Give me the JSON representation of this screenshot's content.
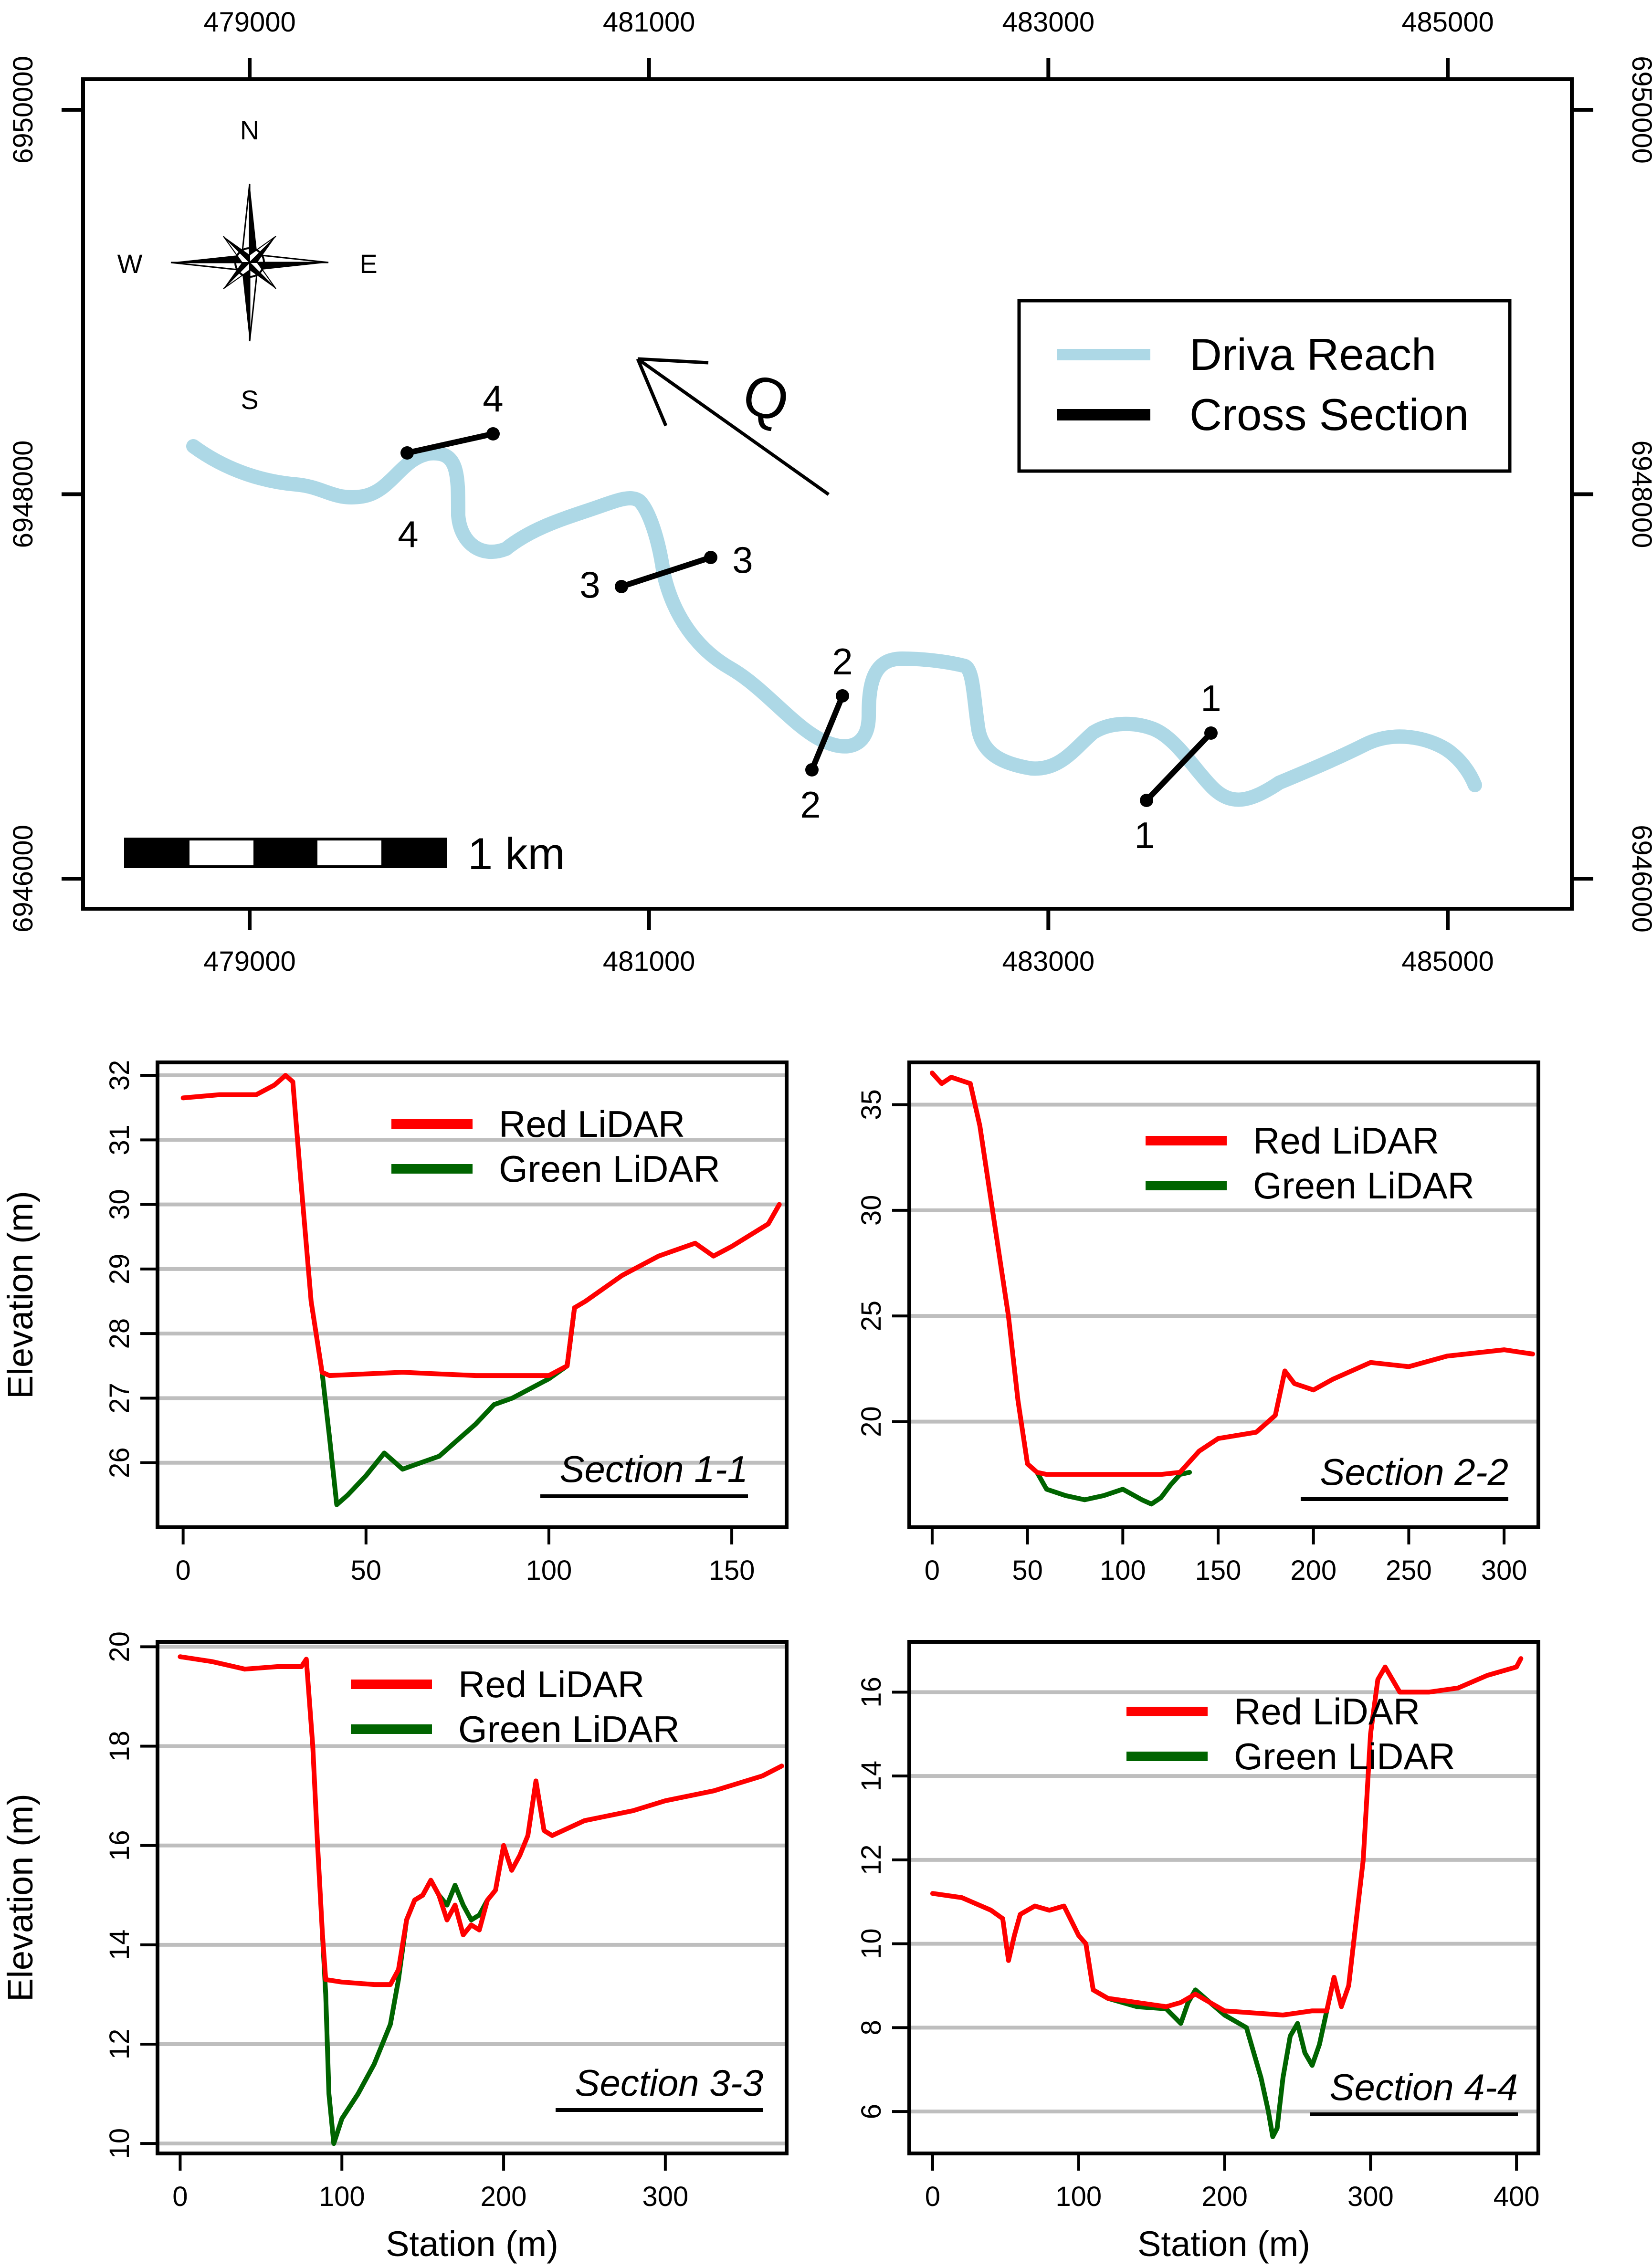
{
  "map": {
    "x_ticks": [
      "479000",
      "481000",
      "483000",
      "485000"
    ],
    "x_tick_values": [
      479000,
      481000,
      483000,
      485000
    ],
    "y_ticks": [
      "6946000",
      "6948000",
      "6950000"
    ],
    "y_tick_values": [
      6946000,
      6948000,
      6950000
    ],
    "compass": {
      "n": "N",
      "s": "S",
      "e": "E",
      "w": "W"
    },
    "flow_label": "Q",
    "legend": [
      {
        "label": "Driva Reach",
        "color": "#add8e6"
      },
      {
        "label": "Cross Section",
        "color": "#000000"
      }
    ],
    "scale_bar_label": "1 km",
    "cross_sections": [
      {
        "id": "1",
        "start_label": "1",
        "end_label": "1"
      },
      {
        "id": "2",
        "start_label": "2",
        "end_label": "2"
      },
      {
        "id": "3",
        "start_label": "3",
        "end_label": "3"
      },
      {
        "id": "4",
        "start_label": "4",
        "end_label": "4"
      }
    ]
  },
  "panels": {
    "ylabel": "Elevation (m)",
    "xlabel": "Station (m)",
    "legend_red": "Red LiDAR",
    "legend_green": "Green LiDAR",
    "red_color": "#ff0000",
    "green_color": "#006400",
    "grid_color": "#bebebe"
  },
  "chart_data": [
    {
      "type": "line",
      "title": "Section 1-1",
      "xlabel": "",
      "ylabel": "Elevation (m)",
      "xlim": [
        -7,
        165
      ],
      "ylim": [
        25.0,
        32.2
      ],
      "x_ticks": [
        0,
        50,
        100,
        150
      ],
      "y_ticks": [
        26,
        27,
        28,
        29,
        30,
        31,
        32
      ],
      "series": [
        {
          "name": "Red LiDAR",
          "x": [
            0,
            10,
            20,
            25,
            28,
            30,
            32,
            35,
            38,
            40,
            60,
            80,
            100,
            105,
            107,
            110,
            120,
            130,
            140,
            145,
            150,
            160,
            163
          ],
          "y": [
            31.65,
            31.7,
            31.7,
            31.85,
            32.0,
            31.9,
            30.5,
            28.5,
            27.4,
            27.35,
            27.4,
            27.35,
            27.35,
            27.5,
            28.4,
            28.5,
            28.9,
            29.2,
            29.4,
            29.2,
            29.35,
            29.7,
            30.0
          ]
        },
        {
          "name": "Green LiDAR",
          "x": [
            38,
            40,
            42,
            45,
            50,
            55,
            60,
            65,
            70,
            80,
            85,
            90,
            100,
            105,
            107
          ],
          "y": [
            27.4,
            26.4,
            25.35,
            25.5,
            25.8,
            26.15,
            25.9,
            26.0,
            26.1,
            26.6,
            26.9,
            27.0,
            27.3,
            27.5,
            28.4
          ]
        }
      ]
    },
    {
      "type": "line",
      "title": "Section 2-2",
      "xlabel": "",
      "ylabel": "",
      "xlim": [
        -12,
        318
      ],
      "ylim": [
        15.0,
        37.0
      ],
      "x_ticks": [
        0,
        50,
        100,
        150,
        200,
        250,
        300
      ],
      "y_ticks": [
        20,
        25,
        30,
        35
      ],
      "series": [
        {
          "name": "Red LiDAR",
          "x": [
            0,
            5,
            10,
            20,
            25,
            30,
            40,
            45,
            50,
            55,
            60,
            80,
            100,
            120,
            130,
            140,
            150,
            170,
            180,
            185,
            190,
            200,
            210,
            230,
            250,
            270,
            300,
            315
          ],
          "y": [
            36.5,
            36.0,
            36.3,
            36.0,
            34.0,
            31.0,
            25.0,
            21.0,
            18.0,
            17.6,
            17.5,
            17.5,
            17.5,
            17.5,
            17.6,
            18.6,
            19.2,
            19.5,
            20.3,
            22.4,
            21.8,
            21.5,
            22.0,
            22.8,
            22.6,
            23.1,
            23.4,
            23.2
          ]
        },
        {
          "name": "Green LiDAR",
          "x": [
            55,
            60,
            70,
            80,
            90,
            100,
            110,
            115,
            120,
            125,
            130,
            135
          ],
          "y": [
            17.6,
            16.8,
            16.5,
            16.3,
            16.5,
            16.8,
            16.3,
            16.1,
            16.4,
            17.0,
            17.5,
            17.6
          ]
        }
      ]
    },
    {
      "type": "line",
      "title": "Section 3-3",
      "xlabel": "Station (m)",
      "ylabel": "Elevation (m)",
      "xlim": [
        -14,
        375
      ],
      "ylim": [
        9.8,
        20.1
      ],
      "x_ticks": [
        0,
        100,
        200,
        300
      ],
      "y_ticks": [
        10,
        12,
        14,
        16,
        18,
        20
      ],
      "series": [
        {
          "name": "Red LiDAR",
          "x": [
            0,
            20,
            40,
            60,
            75,
            78,
            82,
            85,
            88,
            90,
            100,
            120,
            130,
            135,
            140,
            145,
            150,
            155,
            160,
            165,
            170,
            175,
            180,
            185,
            190,
            195,
            200,
            205,
            210,
            215,
            220,
            225,
            230,
            250,
            280,
            300,
            330,
            360,
            372
          ],
          "y": [
            19.8,
            19.7,
            19.55,
            19.6,
            19.6,
            19.75,
            18.0,
            16.0,
            14.2,
            13.3,
            13.25,
            13.2,
            13.2,
            13.5,
            14.5,
            14.9,
            15.0,
            15.3,
            15.0,
            14.5,
            14.8,
            14.2,
            14.4,
            14.3,
            14.9,
            15.1,
            16.0,
            15.5,
            15.8,
            16.2,
            17.3,
            16.3,
            16.2,
            16.5,
            16.7,
            16.9,
            17.1,
            17.4,
            17.6
          ]
        },
        {
          "name": "Green LiDAR",
          "x": [
            88,
            90,
            92,
            95,
            100,
            110,
            120,
            130,
            135,
            140,
            145,
            150,
            155,
            160,
            165,
            170,
            175,
            180,
            185,
            190
          ],
          "y": [
            14.2,
            13.0,
            11.0,
            10.0,
            10.5,
            11.0,
            11.6,
            12.4,
            13.3,
            14.5,
            14.9,
            15.0,
            15.3,
            15.0,
            14.8,
            15.2,
            14.8,
            14.5,
            14.6,
            14.9
          ]
        }
      ]
    },
    {
      "type": "line",
      "title": "Section 4-4",
      "xlabel": "Station (m)",
      "ylabel": "",
      "xlim": [
        -16,
        415
      ],
      "ylim": [
        5.0,
        17.2
      ],
      "x_ticks": [
        0,
        100,
        200,
        300,
        400
      ],
      "y_ticks": [
        6,
        8,
        10,
        12,
        14,
        16
      ],
      "series": [
        {
          "name": "Red LiDAR",
          "x": [
            0,
            20,
            40,
            48,
            52,
            56,
            60,
            70,
            80,
            90,
            100,
            105,
            110,
            120,
            140,
            160,
            170,
            180,
            190,
            200,
            220,
            240,
            260,
            270,
            275,
            280,
            285,
            290,
            295,
            300,
            305,
            310,
            320,
            340,
            360,
            380,
            400,
            403
          ],
          "y": [
            11.2,
            11.1,
            10.8,
            10.6,
            9.6,
            10.2,
            10.7,
            10.9,
            10.8,
            10.9,
            10.2,
            10.0,
            8.9,
            8.7,
            8.6,
            8.5,
            8.6,
            8.8,
            8.6,
            8.4,
            8.35,
            8.3,
            8.4,
            8.4,
            9.2,
            8.5,
            9.0,
            10.5,
            12.0,
            15.0,
            16.3,
            16.6,
            16.0,
            16.0,
            16.1,
            16.4,
            16.6,
            16.8
          ]
        },
        {
          "name": "Green LiDAR",
          "x": [
            110,
            120,
            140,
            160,
            170,
            175,
            180,
            190,
            200,
            215,
            220,
            225,
            230,
            233,
            236,
            240,
            245,
            250,
            255,
            260,
            265,
            270,
            275
          ],
          "y": [
            8.9,
            8.7,
            8.5,
            8.45,
            8.1,
            8.6,
            8.9,
            8.6,
            8.3,
            8.0,
            7.4,
            6.8,
            6.0,
            5.4,
            5.6,
            6.8,
            7.8,
            8.1,
            7.4,
            7.1,
            7.6,
            8.4,
            9.2
          ]
        }
      ]
    }
  ]
}
